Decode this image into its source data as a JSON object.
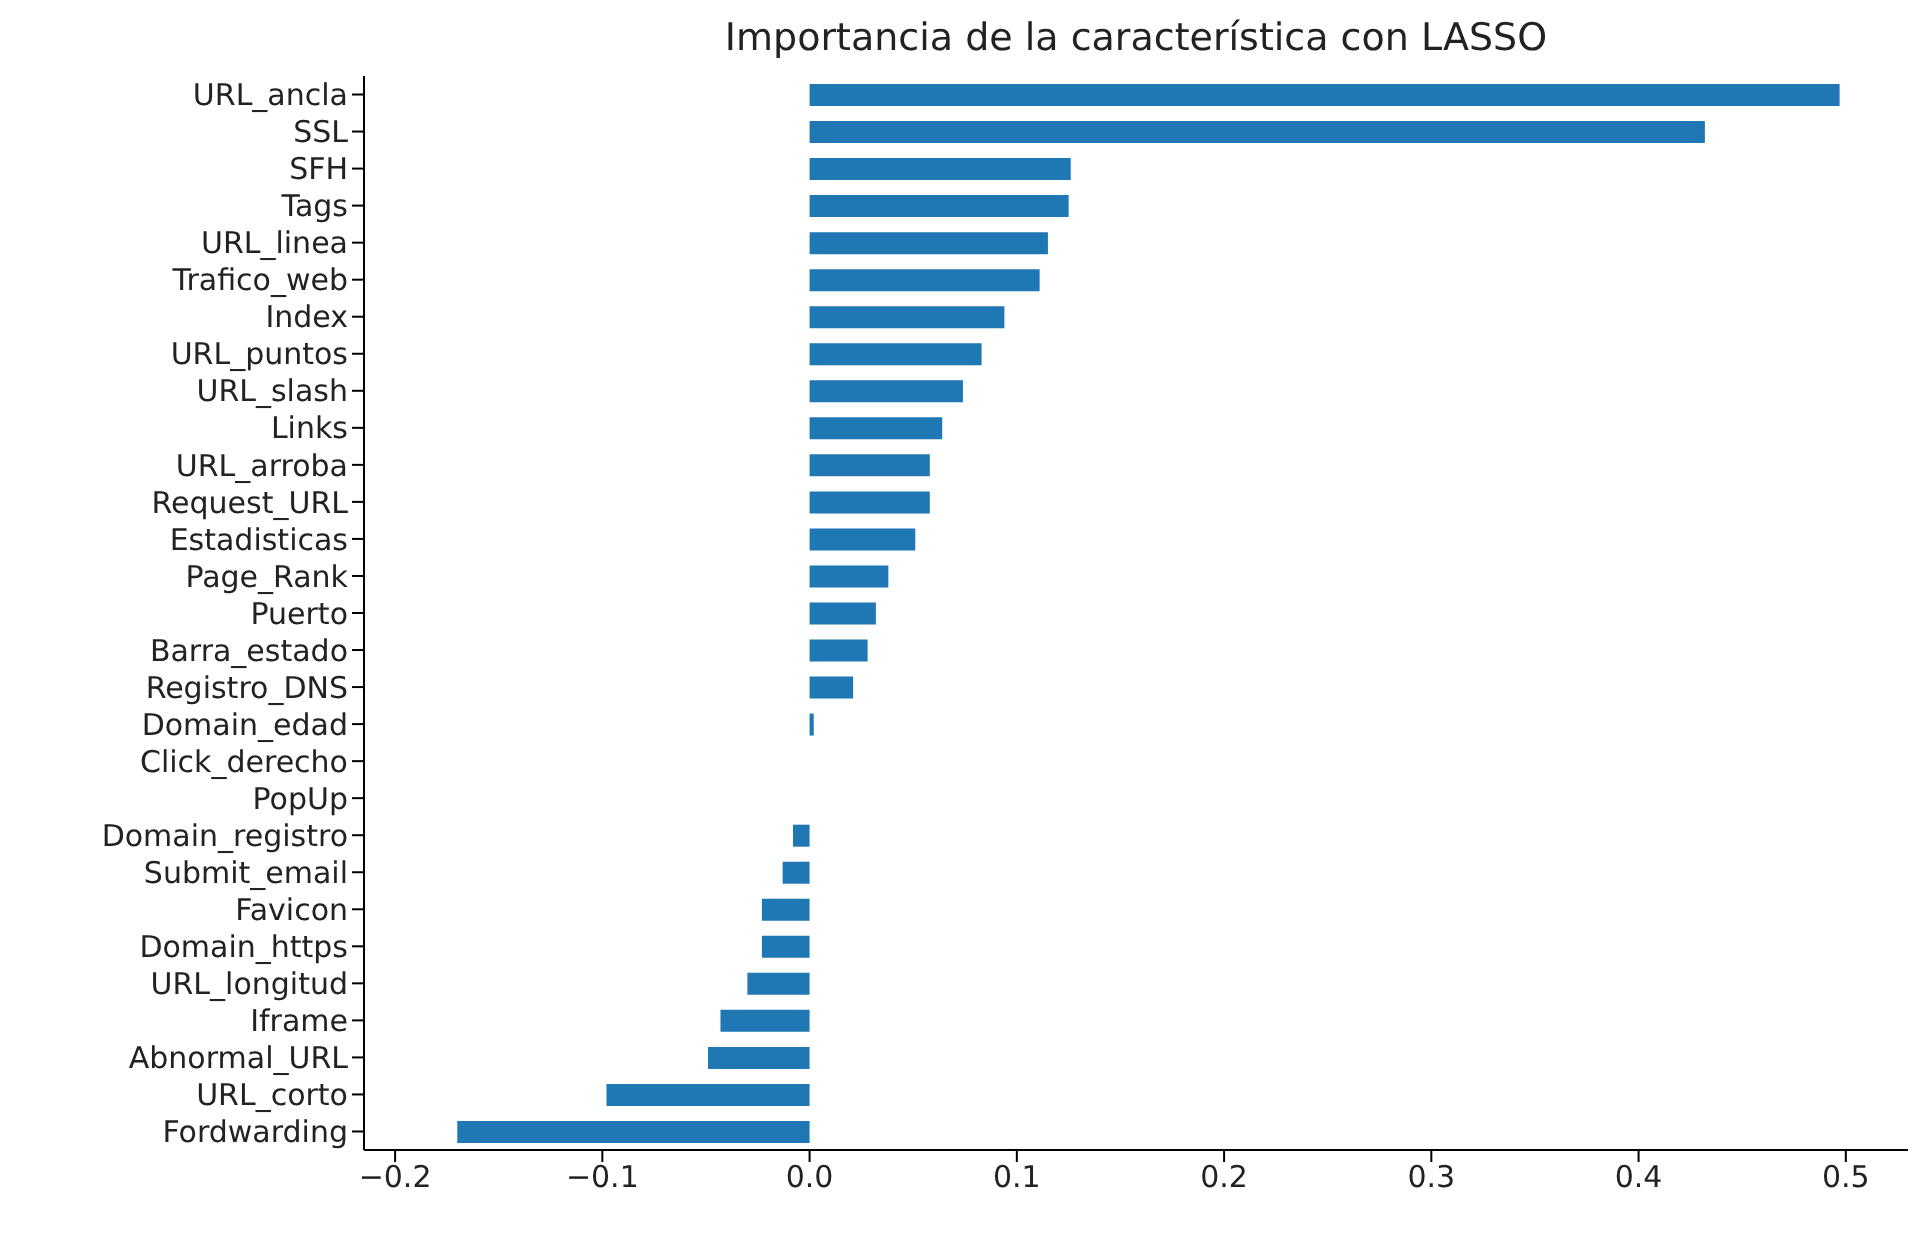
{
  "chart_data": {
    "type": "bar",
    "orientation": "horizontal",
    "title": "Importancia de la característica con LASSO",
    "categories": [
      "URL_ancla",
      "SSL",
      "SFH",
      "Tags",
      "URL_linea",
      "Trafico_web",
      "Index",
      "URL_puntos",
      "URL_slash",
      "Links",
      "URL_arroba",
      "Request_URL",
      "Estadisticas",
      "Page_Rank",
      "Puerto",
      "Barra_estado",
      "Registro_DNS",
      "Domain_edad",
      "Click_derecho",
      "PopUp",
      "Domain_registro",
      "Submit_email",
      "Favicon",
      "Domain_https",
      "URL_longitud",
      "Iframe",
      "Abnormal_URL",
      "URL_corto",
      "Fordwarding"
    ],
    "values": [
      0.497,
      0.432,
      0.126,
      0.125,
      0.115,
      0.111,
      0.094,
      0.083,
      0.074,
      0.064,
      0.058,
      0.058,
      0.051,
      0.038,
      0.032,
      0.028,
      0.021,
      0.002,
      0,
      0,
      -0.008,
      -0.013,
      -0.023,
      -0.023,
      -0.03,
      -0.043,
      -0.049,
      -0.098,
      -0.17
    ],
    "color": "#1f77b4",
    "xlim": [
      -0.215,
      0.53
    ],
    "xticks": [
      {
        "value": -0.2,
        "label": "−0.2"
      },
      {
        "value": -0.1,
        "label": "−0.1"
      },
      {
        "value": 0,
        "label": "0.0"
      },
      {
        "value": 0.1,
        "label": "0.1"
      },
      {
        "value": 0.2,
        "label": "0.2"
      },
      {
        "value": 0.3,
        "label": "0.3"
      },
      {
        "value": 0.4,
        "label": "0.4"
      },
      {
        "value": 0.5,
        "label": "0.5"
      }
    ],
    "grid": false,
    "legend": false
  }
}
